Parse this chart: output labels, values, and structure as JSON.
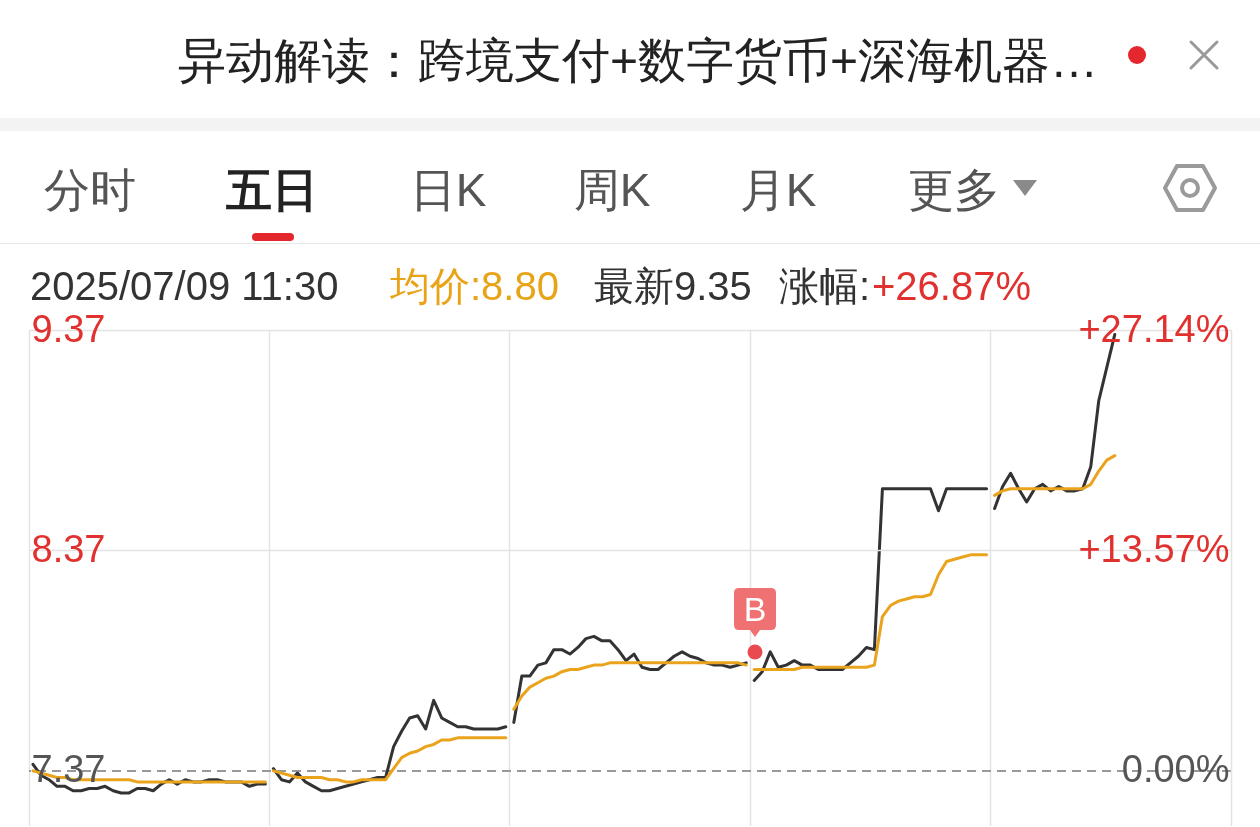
{
  "chart_data": {
    "type": "line",
    "title": "异动解读：跨境支付+数字货币+深海机器…",
    "annotations": [
      "分时",
      "五日",
      "日K",
      "周K",
      "月K",
      "更多",
      "2025/07/09 11:30",
      "均价:8.80",
      "最新9.35",
      "涨幅:",
      "+26.87%",
      "B"
    ],
    "categories": [
      null,
      null,
      null,
      null,
      null,
      null,
      null,
      null,
      null,
      null,
      null,
      null,
      null,
      null,
      null,
      null,
      null,
      null,
      null,
      null,
      null,
      null,
      null,
      null,
      null,
      null,
      null,
      null,
      null,
      null,
      null,
      null,
      null,
      null,
      null,
      null,
      null,
      null,
      null,
      null,
      null,
      null,
      null,
      null,
      null,
      null,
      null,
      null,
      null,
      null,
      null,
      null,
      null,
      null,
      null,
      null,
      null,
      null,
      null,
      null,
      null,
      null,
      null,
      null,
      null,
      null,
      null,
      null,
      null,
      null,
      null,
      null,
      null,
      null,
      null,
      null,
      null,
      null,
      null,
      null,
      null,
      null,
      null,
      null,
      null,
      null,
      null,
      null,
      null,
      null,
      null,
      null,
      null,
      null,
      null,
      null,
      null,
      null,
      null,
      null,
      null,
      null,
      null,
      null,
      null,
      null,
      null,
      null,
      null,
      null,
      null,
      null,
      null,
      null,
      null,
      null,
      null,
      null,
      null,
      null,
      null,
      null,
      null,
      null,
      null,
      null,
      null,
      null,
      null,
      null,
      null,
      null,
      null,
      null,
      null,
      null,
      null,
      null,
      null,
      null,
      null,
      null,
      null,
      null,
      null,
      null,
      null,
      null,
      null,
      null
    ],
    "series": [
      {
        "color": "#333333",
        "values": [
          7.4,
          7.35,
          7.33,
          7.3,
          7.3,
          7.28,
          7.28,
          7.29,
          7.29,
          7.3,
          7.28,
          7.27,
          7.27,
          7.29,
          7.29,
          7.28,
          7.31,
          7.33,
          7.31,
          7.33,
          7.32,
          7.32,
          7.33,
          7.33,
          7.32,
          7.32,
          7.32,
          7.3,
          7.31,
          7.31,
          null,
          null,
          null,
          null,
          null,
          null,
          null,
          null,
          null,
          null,
          null,
          null,
          null,
          null,
          null,
          null,
          null,
          null,
          null,
          null,
          null,
          null,
          null,
          null,
          null,
          null,
          null,
          null,
          null,
          null,
          7.59,
          7.8,
          7.8,
          7.85,
          7.86,
          7.92,
          7.92,
          7.9,
          7.93,
          7.97,
          7.98,
          7.96,
          7.96,
          7.92,
          7.87,
          7.9,
          7.84,
          7.83,
          7.83,
          7.86,
          7.89,
          7.91,
          7.89,
          7.88,
          7.86,
          7.85,
          7.85,
          7.84,
          7.85,
          7.86,
          null,
          null,
          null,
          null,
          null,
          null,
          null,
          null,
          null,
          null,
          null,
          null,
          null,
          null,
          null,
          null,
          null,
          null,
          null,
          null,
          null,
          null,
          null,
          null,
          null,
          null,
          null,
          null,
          null,
          null,
          8.56,
          8.66,
          8.72,
          8.65,
          8.59,
          8.65,
          8.67,
          8.64,
          8.66,
          8.64,
          8.64,
          8.65,
          8.75,
          9.05,
          9.2,
          9.35,
          null,
          null,
          null,
          null,
          null,
          null,
          null,
          null,
          null,
          null,
          null,
          null,
          null,
          null
        ]
      },
      {
        "color": "#333333",
        "values": [
          null,
          null,
          null,
          null,
          null,
          null,
          null,
          null,
          null,
          null,
          null,
          null,
          null,
          null,
          null,
          null,
          null,
          null,
          null,
          null,
          null,
          null,
          null,
          null,
          null,
          null,
          null,
          null,
          null,
          null,
          7.38,
          7.33,
          7.32,
          7.36,
          7.32,
          7.3,
          7.28,
          7.28,
          7.29,
          7.3,
          7.31,
          7.32,
          7.33,
          7.34,
          7.34,
          7.48,
          7.55,
          7.61,
          7.62,
          7.56,
          7.69,
          7.61,
          7.59,
          7.57,
          7.57,
          7.56,
          7.56,
          7.56,
          7.56,
          7.57,
          null,
          null,
          null,
          null,
          null,
          null,
          null,
          null,
          null,
          null,
          null,
          null,
          null,
          null,
          null,
          null,
          null,
          null,
          null,
          null,
          null,
          null,
          null,
          null,
          null,
          null,
          null,
          null,
          null,
          null,
          7.78,
          7.82,
          7.91,
          7.84,
          7.85,
          7.87,
          7.85,
          7.85,
          7.83,
          7.83,
          7.83,
          7.83,
          7.86,
          7.89,
          7.93,
          7.92,
          8.65,
          8.65,
          8.65,
          8.65,
          8.65,
          8.65,
          8.65,
          8.55,
          8.65,
          8.65,
          8.65,
          8.65,
          8.65,
          8.65,
          null,
          null,
          null,
          null,
          null,
          null,
          null,
          null,
          null,
          null,
          null,
          null,
          null,
          null,
          null,
          null,
          null,
          null,
          null,
          null,
          null,
          null,
          null,
          null,
          null,
          null,
          null,
          null,
          null,
          null
        ]
      },
      {
        "color": "#eaa31c",
        "values": [
          7.37,
          7.36,
          7.35,
          7.34,
          7.34,
          7.33,
          7.33,
          7.33,
          7.33,
          7.33,
          7.33,
          7.33,
          7.33,
          7.32,
          7.32,
          7.32,
          7.32,
          7.32,
          7.32,
          7.32,
          7.32,
          7.32,
          7.32,
          7.32,
          7.32,
          7.32,
          7.32,
          7.32,
          7.32,
          7.32,
          null,
          null,
          null,
          null,
          null,
          null,
          null,
          null,
          null,
          null,
          null,
          null,
          null,
          null,
          null,
          null,
          null,
          null,
          null,
          null,
          null,
          null,
          null,
          null,
          null,
          null,
          null,
          null,
          null,
          null,
          7.65,
          7.71,
          7.75,
          7.77,
          7.79,
          7.8,
          7.82,
          7.83,
          7.83,
          7.84,
          7.85,
          7.85,
          7.86,
          7.86,
          7.86,
          7.86,
          7.86,
          7.86,
          7.86,
          7.86,
          7.86,
          7.86,
          7.86,
          7.86,
          7.86,
          7.86,
          7.86,
          7.86,
          7.86,
          7.85,
          null,
          null,
          null,
          null,
          null,
          null,
          null,
          null,
          null,
          null,
          null,
          null,
          null,
          null,
          null,
          null,
          null,
          null,
          null,
          null,
          null,
          null,
          null,
          null,
          null,
          null,
          null,
          null,
          null,
          null,
          8.62,
          8.64,
          8.65,
          8.65,
          8.65,
          8.65,
          8.65,
          8.65,
          8.65,
          8.65,
          8.65,
          8.65,
          8.67,
          8.73,
          8.78,
          8.8,
          null,
          null,
          null,
          null,
          null,
          null,
          null,
          null,
          null,
          null,
          null,
          null,
          null,
          null
        ]
      },
      {
        "color": "#eaa31c",
        "values": [
          null,
          null,
          null,
          null,
          null,
          null,
          null,
          null,
          null,
          null,
          null,
          null,
          null,
          null,
          null,
          null,
          null,
          null,
          null,
          null,
          null,
          null,
          null,
          null,
          null,
          null,
          null,
          null,
          null,
          null,
          7.37,
          7.36,
          7.35,
          7.34,
          7.34,
          7.34,
          7.34,
          7.33,
          7.33,
          7.32,
          7.32,
          7.33,
          7.33,
          7.33,
          7.33,
          7.38,
          7.43,
          7.45,
          7.46,
          7.48,
          7.49,
          7.51,
          7.51,
          7.52,
          7.52,
          7.52,
          7.52,
          7.52,
          7.52,
          7.52,
          null,
          null,
          null,
          null,
          null,
          null,
          null,
          null,
          null,
          null,
          null,
          null,
          null,
          null,
          null,
          null,
          null,
          null,
          null,
          null,
          null,
          null,
          null,
          null,
          null,
          null,
          null,
          null,
          null,
          null,
          7.83,
          7.83,
          7.83,
          7.83,
          7.83,
          7.83,
          7.84,
          7.84,
          7.84,
          7.84,
          7.84,
          7.84,
          7.84,
          7.84,
          7.84,
          7.85,
          8.07,
          8.12,
          8.14,
          8.15,
          8.16,
          8.16,
          8.17,
          8.26,
          8.32,
          8.33,
          8.34,
          8.35,
          8.35,
          8.35,
          null,
          null,
          null,
          null,
          null,
          null,
          null,
          null,
          null,
          null,
          null,
          null,
          null,
          null,
          null,
          null,
          null,
          null,
          null,
          null,
          null,
          null,
          null,
          null,
          null,
          null,
          null,
          null,
          null,
          null
        ]
      }
    ],
    "ylim": [
      7.12,
      9.37
    ],
    "yticks": [
      7.37,
      8.37,
      9.37
    ],
    "y2lim": [
      -3.39,
      27.14
    ],
    "y2ticks": [
      {
        "value": 0,
        "label": "0.00%"
      },
      {
        "value": 13.57,
        "label": "+13.57%"
      },
      {
        "value": 27.14,
        "label": "+27.14%"
      }
    ],
    "ref_lines": [
      {
        "axis": "y2",
        "value": 0,
        "color": "#999999",
        "line_style": "dashed"
      }
    ],
    "grid": true
  }
}
